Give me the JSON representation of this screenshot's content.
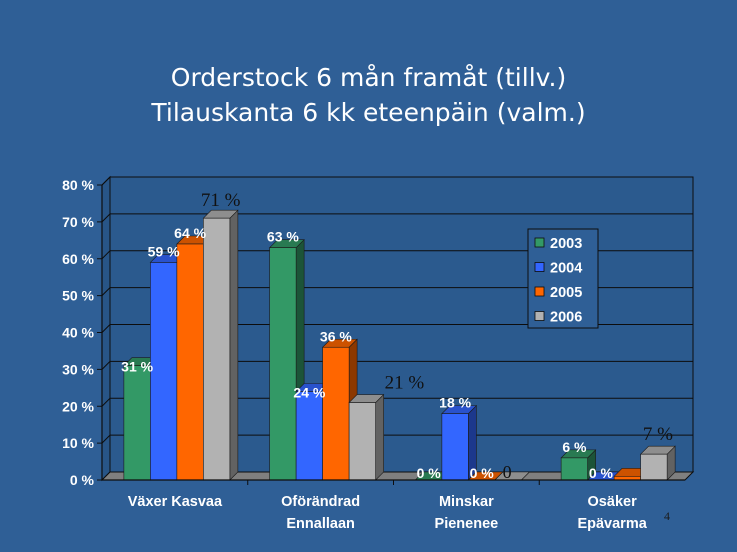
{
  "slide": {
    "title_line1": "Orderstock 6 mån framåt (tillv.)",
    "title_line2": "Tilauskanta 6 kk eteenpäin (valm.)",
    "page_number": "4",
    "background_color": "#2f5f96"
  },
  "chart_data": {
    "type": "bar",
    "title": "",
    "xlabel": "",
    "ylabel": "",
    "ylim": [
      0,
      80
    ],
    "yticks": [
      "0 %",
      "10 %",
      "20 %",
      "30 %",
      "40 %",
      "50 %",
      "60 %",
      "70 %",
      "80 %"
    ],
    "grid": true,
    "legend_position": "right",
    "categories": [
      [
        "Växer Kasvaa"
      ],
      [
        "Oförändrad",
        "Ennallaan"
      ],
      [
        "Minskar",
        "Pienenee"
      ],
      [
        "Osäker",
        "Epävarma"
      ]
    ],
    "series": [
      {
        "name": "2003",
        "color": "#339966",
        "values": [
          31,
          63,
          0,
          6
        ],
        "labels": [
          "31 %",
          "63 %",
          "0 %",
          "6 %"
        ]
      },
      {
        "name": "2004",
        "color": "#3366ff",
        "values": [
          59,
          24,
          18,
          0
        ],
        "labels": [
          "59 %",
          "24 %",
          "18 %",
          "0 %"
        ]
      },
      {
        "name": "2005",
        "color": "#ff6600",
        "values": [
          64,
          36,
          0,
          1
        ],
        "labels": [
          "64 %",
          "36 %",
          "0 %",
          ""
        ]
      },
      {
        "name": "2006",
        "color": "#b2b2b2",
        "values": [
          71,
          21,
          0,
          7
        ],
        "labels": [
          "71 %",
          "21 %",
          "0",
          "7 %"
        ]
      }
    ]
  }
}
